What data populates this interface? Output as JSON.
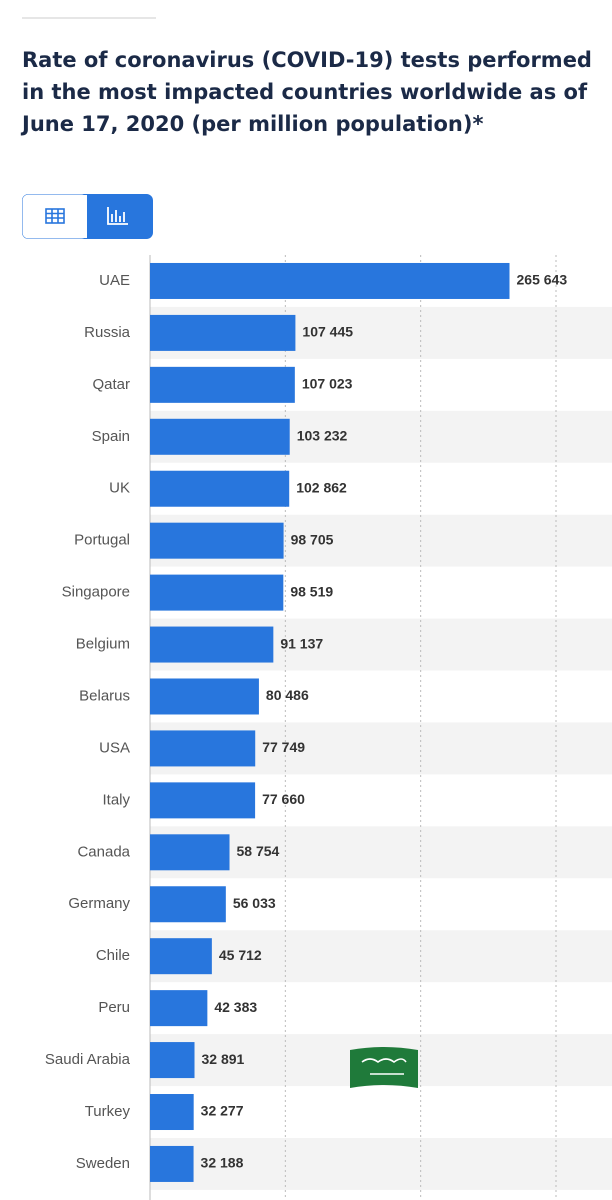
{
  "chart_data": {
    "type": "bar",
    "orientation": "horizontal",
    "title": "Rate of coronavirus (COVID-19) tests performed in the most impacted countries worldwide as of June 17, 2020 (per million population)*",
    "categories": [
      "UAE",
      "Russia",
      "Qatar",
      "Spain",
      "UK",
      "Portugal",
      "Singapore",
      "Belgium",
      "Belarus",
      "USA",
      "Italy",
      "Canada",
      "Germany",
      "Chile",
      "Peru",
      "Saudi Arabia",
      "Turkey",
      "Sweden"
    ],
    "values": [
      265643,
      107445,
      107023,
      103232,
      102862,
      98705,
      98519,
      91137,
      80486,
      77749,
      77660,
      58754,
      56033,
      45712,
      42383,
      32891,
      32277,
      32188
    ],
    "value_labels": [
      "265 643",
      "107 445",
      "107 023",
      "103 232",
      "102 862",
      "98 705",
      "98 519",
      "91 137",
      "80 486",
      "77 749",
      "77 660",
      "58 754",
      "56 033",
      "45 712",
      "42 383",
      "32 891",
      "32 277",
      "32 188"
    ],
    "color": "#2876dd",
    "xlim": [
      0,
      300000
    ],
    "xticks": [
      0,
      100000,
      200000,
      300000
    ],
    "grid": true
  }
}
